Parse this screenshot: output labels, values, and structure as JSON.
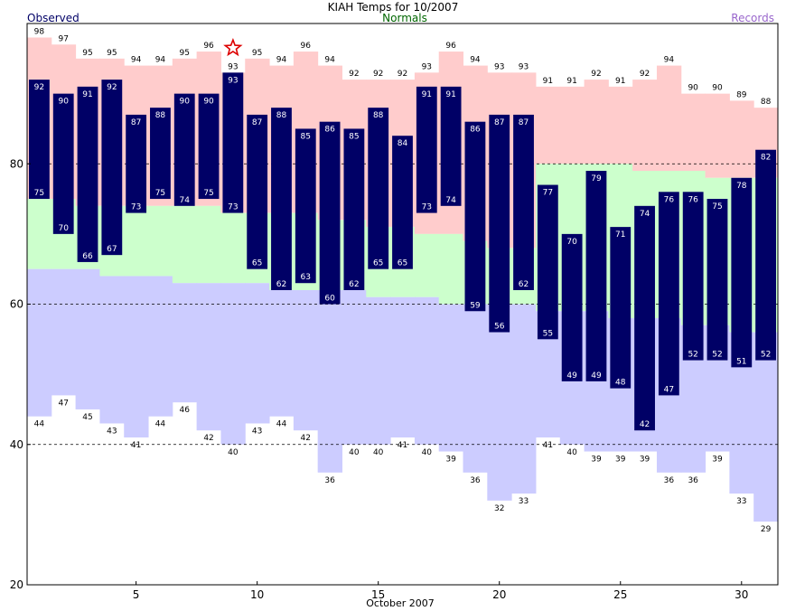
{
  "chart_data": {
    "type": "bar",
    "title": "KIAH Temps for 10/2007",
    "xlabel": "October 2007",
    "ylabel": "",
    "legend": {
      "observed": "Observed",
      "normals": "Normals",
      "records": "Records",
      "placement": "top"
    },
    "ylim": [
      20,
      100
    ],
    "xlim": [
      0.5,
      31.5
    ],
    "yticks": [
      20,
      40,
      60,
      80
    ],
    "xticks": [
      5,
      10,
      15,
      20,
      25,
      30
    ],
    "grid": {
      "horizontal": [
        40,
        60,
        80
      ],
      "style": "dashed"
    },
    "days": [
      1,
      2,
      3,
      4,
      5,
      6,
      7,
      8,
      9,
      10,
      11,
      12,
      13,
      14,
      15,
      16,
      17,
      18,
      19,
      20,
      21,
      22,
      23,
      24,
      25,
      26,
      27,
      28,
      29,
      30,
      31
    ],
    "series": [
      {
        "name": "Observed High",
        "values": [
          92,
          90,
          91,
          92,
          87,
          88,
          90,
          90,
          93,
          87,
          88,
          85,
          86,
          85,
          88,
          84,
          91,
          91,
          86,
          87,
          87,
          77,
          70,
          79,
          71,
          74,
          76,
          76,
          75,
          78,
          82
        ]
      },
      {
        "name": "Observed Low",
        "values": [
          75,
          70,
          66,
          67,
          73,
          75,
          74,
          75,
          73,
          65,
          62,
          63,
          60,
          62,
          65,
          65,
          73,
          74,
          59,
          56,
          62,
          55,
          49,
          49,
          48,
          42,
          47,
          52,
          52,
          51,
          52
        ]
      },
      {
        "name": "Record High",
        "values": [
          98,
          97,
          95,
          95,
          94,
          94,
          95,
          96,
          93,
          95,
          94,
          96,
          94,
          92,
          92,
          92,
          93,
          96,
          94,
          93,
          93,
          91,
          91,
          92,
          91,
          92,
          94,
          90,
          90,
          89,
          88
        ]
      },
      {
        "name": "Record Low",
        "values": [
          44,
          47,
          45,
          43,
          41,
          44,
          46,
          42,
          40,
          43,
          44,
          42,
          36,
          40,
          40,
          41,
          40,
          39,
          36,
          32,
          33,
          41,
          40,
          39,
          39,
          39,
          36,
          36,
          39,
          33,
          29
        ]
      },
      {
        "name": "Normal High",
        "values": [
          null,
          null,
          null,
          null,
          null,
          null,
          null,
          null,
          null,
          null,
          null,
          null,
          null,
          null,
          null,
          null,
          null,
          null,
          null,
          null,
          null,
          null,
          null,
          null,
          null,
          null,
          null,
          null,
          null,
          null,
          null
        ]
      },
      {
        "name": "Normal Low",
        "values": [
          null,
          null,
          null,
          null,
          null,
          null,
          null,
          null,
          null,
          null,
          null,
          null,
          null,
          null,
          null,
          null,
          null,
          null,
          null,
          null,
          null,
          null,
          null,
          null,
          null,
          null,
          null,
          null,
          null,
          null,
          null
        ]
      }
    ],
    "normal_high_est": [
      75,
      75,
      74,
      74,
      74,
      74,
      74,
      74,
      73,
      73,
      73,
      73,
      72,
      72,
      71,
      71,
      70,
      70,
      69,
      68,
      68,
      80,
      80,
      80,
      80,
      79,
      79,
      79,
      78,
      78,
      78
    ],
    "normal_low_est": [
      65,
      65,
      65,
      64,
      64,
      64,
      63,
      63,
      63,
      63,
      62,
      62,
      62,
      62,
      61,
      61,
      61,
      60,
      60,
      60,
      60,
      59,
      59,
      59,
      58,
      58,
      58,
      57,
      57,
      56,
      56
    ],
    "annotations": [
      {
        "type": "record-star",
        "day": 9,
        "value": 96.5
      }
    ],
    "colors": {
      "observed": "#000066",
      "observed_text": "#ffffff",
      "record_high_band": "#ffcccc",
      "normal_band": "#ccffcc",
      "record_low_band": "#ccccff",
      "star": "#dd0000",
      "title_observed": "#000066",
      "title_normals": "#006600",
      "title_records": "#9966cc"
    }
  }
}
